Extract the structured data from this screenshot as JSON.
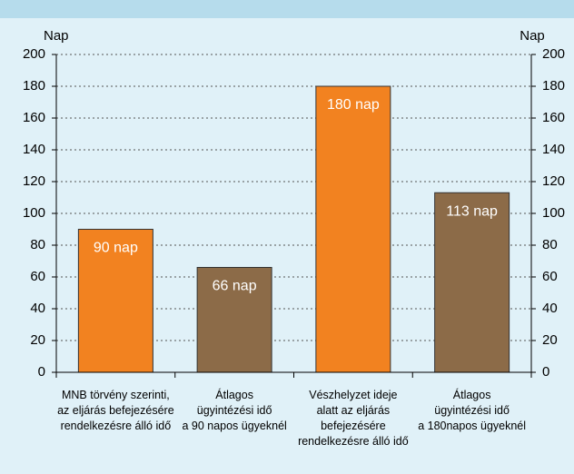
{
  "chart_data": {
    "type": "bar",
    "ylabel": "Nap",
    "y2label": "Nap",
    "categories": [
      "MNB törvény szerinti,\naz eljárás befejezésére\nrendelkezésre álló idő",
      "Átlagos\nügyintézési idő\na 90 napos ügyeknél",
      "Vészhelyzet ideje\nalatt az eljárás\nbefejezésére\nrendelkezésre álló idő",
      "Átlagos\nügyintézési idő\na 180napos ügyeknél"
    ],
    "values": [
      90,
      66,
      180,
      113
    ],
    "value_labels": [
      "90 nap",
      "66 nap",
      "180 nap",
      "113 nap"
    ],
    "colors": [
      "#f28220",
      "#8c6b48",
      "#f28220",
      "#8c6b48"
    ],
    "ylim": [
      0,
      200
    ],
    "yticks": [
      0,
      20,
      40,
      60,
      80,
      100,
      120,
      140,
      160,
      180,
      200
    ],
    "y2lim": [
      0,
      200
    ],
    "y2ticks": [
      0,
      20,
      40,
      60,
      80,
      100,
      120,
      140,
      160,
      180,
      200
    ],
    "grid": true
  }
}
